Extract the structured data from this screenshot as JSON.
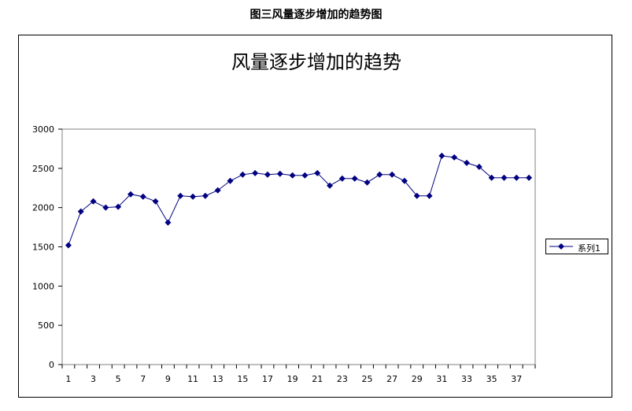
{
  "caption": "图三风量逐步增加的趋势图",
  "chart_data": {
    "type": "line",
    "title": "风量逐步增加的趋势",
    "xlabel": "",
    "ylabel": "",
    "ylim": [
      0,
      3000
    ],
    "yticks": [
      0,
      500,
      1000,
      1500,
      2000,
      2500,
      3000
    ],
    "x": [
      1,
      2,
      3,
      4,
      5,
      6,
      7,
      8,
      9,
      10,
      11,
      12,
      13,
      14,
      15,
      16,
      17,
      18,
      19,
      20,
      21,
      22,
      23,
      24,
      25,
      26,
      27,
      28,
      29,
      30,
      31,
      32,
      33,
      34,
      35,
      36,
      37,
      38
    ],
    "xtick_labels": [
      "1",
      "3",
      "5",
      "7",
      "9",
      "11",
      "13",
      "15",
      "17",
      "19",
      "21",
      "23",
      "25",
      "27",
      "29",
      "31",
      "33",
      "35",
      "37"
    ],
    "grid": false,
    "legend_position": "right",
    "series": [
      {
        "name": "系列1",
        "color": "#000080",
        "marker": "diamond",
        "values": [
          1520,
          1950,
          2080,
          2000,
          2010,
          2170,
          2140,
          2080,
          1810,
          2150,
          2140,
          2150,
          2220,
          2340,
          2420,
          2440,
          2420,
          2430,
          2410,
          2410,
          2440,
          2280,
          2370,
          2370,
          2320,
          2420,
          2420,
          2340,
          2150,
          2150,
          2660,
          2640,
          2570,
          2520,
          2380,
          2380,
          2380,
          2380
        ]
      }
    ]
  }
}
